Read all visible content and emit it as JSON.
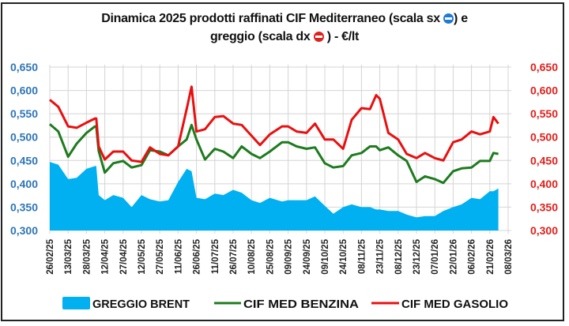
{
  "chart_data": {
    "type": "line",
    "title_line1": "Dinamica 2025 prodotti raffinati CIF Mediterraneo (scala sx",
    "title_line1_end": ") e",
    "title_line2": "greggio (scala dx",
    "title_line2_end": ") - €/lt",
    "left_axis": {
      "ylim": [
        0.3,
        0.65
      ],
      "ticks": [
        "0,300",
        "0,350",
        "0,400",
        "0,450",
        "0,500",
        "0,550",
        "0,600",
        "0,650"
      ],
      "color": "#2e75b6"
    },
    "right_axis": {
      "ylim": [
        0.3,
        0.65
      ],
      "ticks": [
        "0,300",
        "0,350",
        "0,400",
        "0,450",
        "0,500",
        "0,550",
        "0,600",
        "0,650"
      ],
      "color": "#e0201b"
    },
    "x_range": [
      "2025-02-26",
      "2026-03-08"
    ],
    "x_tick_labels": [
      "26/02/25",
      "13/03/25",
      "28/03/25",
      "12/04/25",
      "27/04/25",
      "12/05/25",
      "27/05/25",
      "11/06/25",
      "26/06/25",
      "11/07/25",
      "26/07/25",
      "10/08/25",
      "25/08/25",
      "09/09/25",
      "24/09/25",
      "09/10/25",
      "24/10/25",
      "08/11/25",
      "23/11/25",
      "08/12/25",
      "23/12/25",
      "07/01/26",
      "22/01/26",
      "06/02/26",
      "21/02/26",
      "08/03/26"
    ],
    "grid": true,
    "legend_position": "bottom",
    "x": [
      "2025-02-26",
      "2025-03-05",
      "2025-03-13",
      "2025-03-20",
      "2025-03-28",
      "2025-04-04",
      "2025-04-05",
      "2025-04-07",
      "2025-04-12",
      "2025-04-19",
      "2025-04-27",
      "2025-05-04",
      "2025-05-12",
      "2025-05-19",
      "2025-05-27",
      "2025-06-03",
      "2025-06-11",
      "2025-06-18",
      "2025-06-22",
      "2025-06-26",
      "2025-07-03",
      "2025-07-11",
      "2025-07-18",
      "2025-07-26",
      "2025-08-02",
      "2025-08-10",
      "2025-08-17",
      "2025-08-25",
      "2025-09-04",
      "2025-09-09",
      "2025-09-16",
      "2025-09-24",
      "2025-10-01",
      "2025-10-09",
      "2025-10-16",
      "2025-10-24",
      "2025-10-31",
      "2025-11-08",
      "2025-11-15",
      "2025-11-20",
      "2025-11-23",
      "2025-11-30",
      "2025-12-08",
      "2025-12-15",
      "2025-12-23",
      "2025-12-30",
      "2026-01-07",
      "2026-01-14",
      "2026-01-22",
      "2026-01-29",
      "2026-02-06",
      "2026-02-13",
      "2026-02-21",
      "2026-02-24",
      "2026-02-28"
    ],
    "series": [
      {
        "name": "GREGGIO BRENT",
        "kind": "area",
        "axis": "right",
        "color": "#00b0f0",
        "values": [
          0.447,
          0.441,
          0.41,
          0.413,
          0.432,
          0.438,
          0.438,
          0.376,
          0.365,
          0.376,
          0.37,
          0.35,
          0.376,
          0.367,
          0.362,
          0.365,
          0.404,
          0.432,
          0.427,
          0.37,
          0.367,
          0.379,
          0.376,
          0.387,
          0.381,
          0.365,
          0.359,
          0.37,
          0.362,
          0.365,
          0.365,
          0.365,
          0.373,
          0.353,
          0.336,
          0.35,
          0.356,
          0.35,
          0.35,
          0.345,
          0.345,
          0.342,
          0.342,
          0.334,
          0.328,
          0.331,
          0.331,
          0.342,
          0.35,
          0.356,
          0.37,
          0.367,
          0.384,
          0.384,
          0.39
        ]
      },
      {
        "name": "CIF MED BENZINA",
        "kind": "line",
        "axis": "left",
        "color": "#1e7b1e",
        "values": [
          0.528,
          0.512,
          0.458,
          0.486,
          0.509,
          0.523,
          0.523,
          0.47,
          0.424,
          0.444,
          0.449,
          0.435,
          0.44,
          0.472,
          0.469,
          0.461,
          0.48,
          0.495,
          0.526,
          0.495,
          0.452,
          0.475,
          0.469,
          0.455,
          0.48,
          0.464,
          0.455,
          0.469,
          0.489,
          0.489,
          0.48,
          0.475,
          0.478,
          0.444,
          0.435,
          0.438,
          0.461,
          0.466,
          0.48,
          0.48,
          0.472,
          0.478,
          0.461,
          0.449,
          0.404,
          0.416,
          0.41,
          0.402,
          0.427,
          0.433,
          0.435,
          0.449,
          0.449,
          0.466,
          0.464
        ]
      },
      {
        "name": "CIF MED GASOLIO",
        "kind": "line",
        "axis": "left",
        "color": "#e8100f",
        "values": [
          0.58,
          0.565,
          0.523,
          0.52,
          0.531,
          0.54,
          0.54,
          0.48,
          0.452,
          0.469,
          0.469,
          0.45,
          0.447,
          0.478,
          0.464,
          0.461,
          0.48,
          0.56,
          0.608,
          0.512,
          0.517,
          0.543,
          0.545,
          0.529,
          0.526,
          0.503,
          0.483,
          0.506,
          0.523,
          0.523,
          0.512,
          0.509,
          0.529,
          0.495,
          0.495,
          0.475,
          0.537,
          0.562,
          0.56,
          0.59,
          0.582,
          0.509,
          0.495,
          0.464,
          0.455,
          0.466,
          0.455,
          0.45,
          0.489,
          0.495,
          0.512,
          0.506,
          0.512,
          0.543,
          0.529
        ]
      }
    ]
  }
}
